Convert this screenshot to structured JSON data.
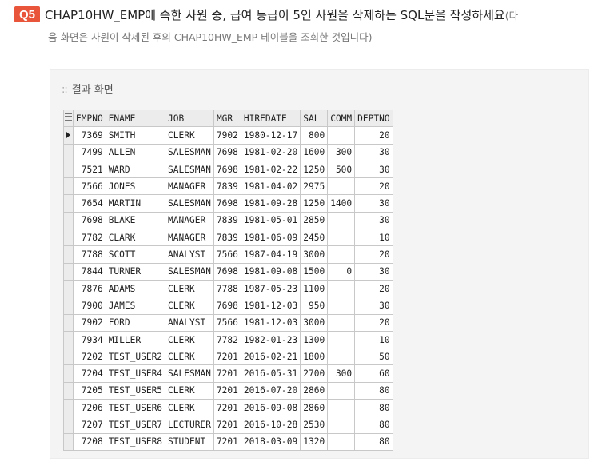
{
  "question": {
    "badge": "Q5",
    "title": "CHAP10HW_EMP에 속한 사원 중, 급여 등급이 5인 사원을 삭제하는 SQL문을 작성하세요",
    "title_tail": "(다",
    "subtitle": "음 화면은 사원이 삭제된 후의 CHAP10HW_EMP 테이블을 조회한 것입니다)"
  },
  "panel": {
    "label_prefix": "::",
    "label": "결과 화면"
  },
  "table": {
    "columns": [
      "EMPNO",
      "ENAME",
      "JOB",
      "MGR",
      "HIREDATE",
      "SAL",
      "COMM",
      "DEPTNO"
    ],
    "rows": [
      [
        "7369",
        "SMITH",
        "CLERK",
        "7902",
        "1980-12-17",
        "800",
        "",
        "20"
      ],
      [
        "7499",
        "ALLEN",
        "SALESMAN",
        "7698",
        "1981-02-20",
        "1600",
        "300",
        "30"
      ],
      [
        "7521",
        "WARD",
        "SALESMAN",
        "7698",
        "1981-02-22",
        "1250",
        "500",
        "30"
      ],
      [
        "7566",
        "JONES",
        "MANAGER",
        "7839",
        "1981-04-02",
        "2975",
        "",
        "20"
      ],
      [
        "7654",
        "MARTIN",
        "SALESMAN",
        "7698",
        "1981-09-28",
        "1250",
        "1400",
        "30"
      ],
      [
        "7698",
        "BLAKE",
        "MANAGER",
        "7839",
        "1981-05-01",
        "2850",
        "",
        "30"
      ],
      [
        "7782",
        "CLARK",
        "MANAGER",
        "7839",
        "1981-06-09",
        "2450",
        "",
        "10"
      ],
      [
        "7788",
        "SCOTT",
        "ANALYST",
        "7566",
        "1987-04-19",
        "3000",
        "",
        "20"
      ],
      [
        "7844",
        "TURNER",
        "SALESMAN",
        "7698",
        "1981-09-08",
        "1500",
        "0",
        "30"
      ],
      [
        "7876",
        "ADAMS",
        "CLERK",
        "7788",
        "1987-05-23",
        "1100",
        "",
        "20"
      ],
      [
        "7900",
        "JAMES",
        "CLERK",
        "7698",
        "1981-12-03",
        "950",
        "",
        "30"
      ],
      [
        "7902",
        "FORD",
        "ANALYST",
        "7566",
        "1981-12-03",
        "3000",
        "",
        "20"
      ],
      [
        "7934",
        "MILLER",
        "CLERK",
        "7782",
        "1982-01-23",
        "1300",
        "",
        "10"
      ],
      [
        "7202",
        "TEST_USER2",
        "CLERK",
        "7201",
        "2016-02-21",
        "1800",
        "",
        "50"
      ],
      [
        "7204",
        "TEST_USER4",
        "SALESMAN",
        "7201",
        "2016-05-31",
        "2700",
        "300",
        "60"
      ],
      [
        "7205",
        "TEST_USER5",
        "CLERK",
        "7201",
        "2016-07-20",
        "2860",
        "",
        "80"
      ],
      [
        "7206",
        "TEST_USER6",
        "CLERK",
        "7201",
        "2016-09-08",
        "2860",
        "",
        "80"
      ],
      [
        "7207",
        "TEST_USER7",
        "LECTURER",
        "7201",
        "2016-10-28",
        "2530",
        "",
        "80"
      ],
      [
        "7208",
        "TEST_USER8",
        "STUDENT",
        "7201",
        "2018-03-09",
        "1320",
        "",
        "80"
      ]
    ],
    "numeric_columns": [
      0,
      3,
      5,
      6,
      7
    ],
    "current_row_index": 0,
    "icons": {
      "corner": "grid-icon",
      "current_row": "row-indicator-arrow-icon"
    }
  }
}
